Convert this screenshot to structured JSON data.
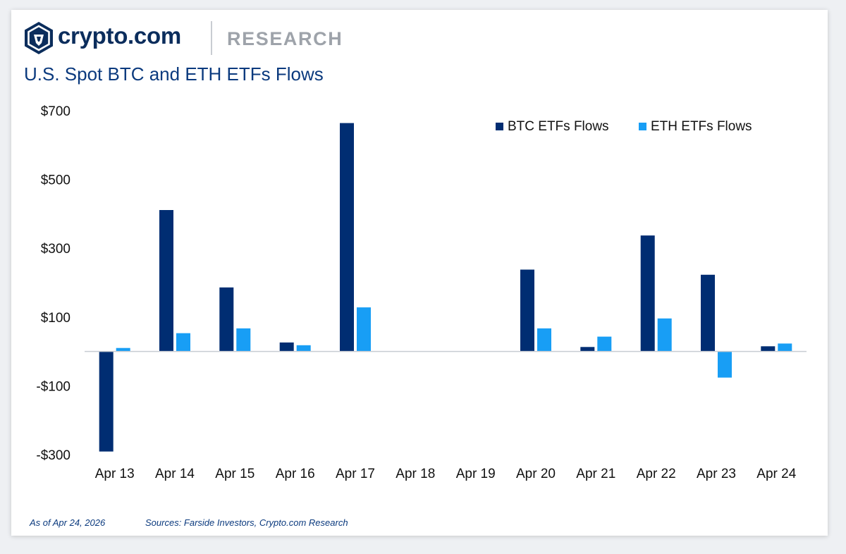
{
  "header": {
    "brand_name": "crypto.com",
    "brand_section": "RESEARCH",
    "logo_icon": "crypto-com-lion-shield-icon"
  },
  "colors": {
    "btc": "#002d72",
    "eth": "#189ef5",
    "axis": "#c8ccd2",
    "text": "#111111",
    "title": "#0b3a7e"
  },
  "chart_data": {
    "type": "bar",
    "title": "U.S. Spot BTC and ETH ETFs Flows",
    "xlabel": "",
    "ylabel": "",
    "ylim": [
      -300,
      700
    ],
    "yticks": [
      700,
      500,
      300,
      100,
      -100,
      -300
    ],
    "ytick_labels": [
      "$700",
      "$500",
      "$300",
      "$100",
      "-$100",
      "-$300"
    ],
    "grid": false,
    "legend_position": "top-right",
    "categories": [
      "Apr 13",
      "Apr 14",
      "Apr 15",
      "Apr 16",
      "Apr 17",
      "Apr 18",
      "Apr 19",
      "Apr 20",
      "Apr 21",
      "Apr 22",
      "Apr 23",
      "Apr 24"
    ],
    "series": [
      {
        "name": "BTC ETFs Flows",
        "values": [
          -291,
          411,
          186,
          26,
          664,
          0,
          0,
          238,
          13,
          337,
          223,
          15
        ]
      },
      {
        "name": "ETH ETFs Flows",
        "values": [
          10,
          53,
          67,
          18,
          128,
          0,
          0,
          67,
          43,
          96,
          -76,
          23
        ]
      }
    ]
  },
  "footer": {
    "as_of": "As of Apr 24, 2026",
    "sources": "Sources: Farside Investors, Crypto.com Research"
  }
}
